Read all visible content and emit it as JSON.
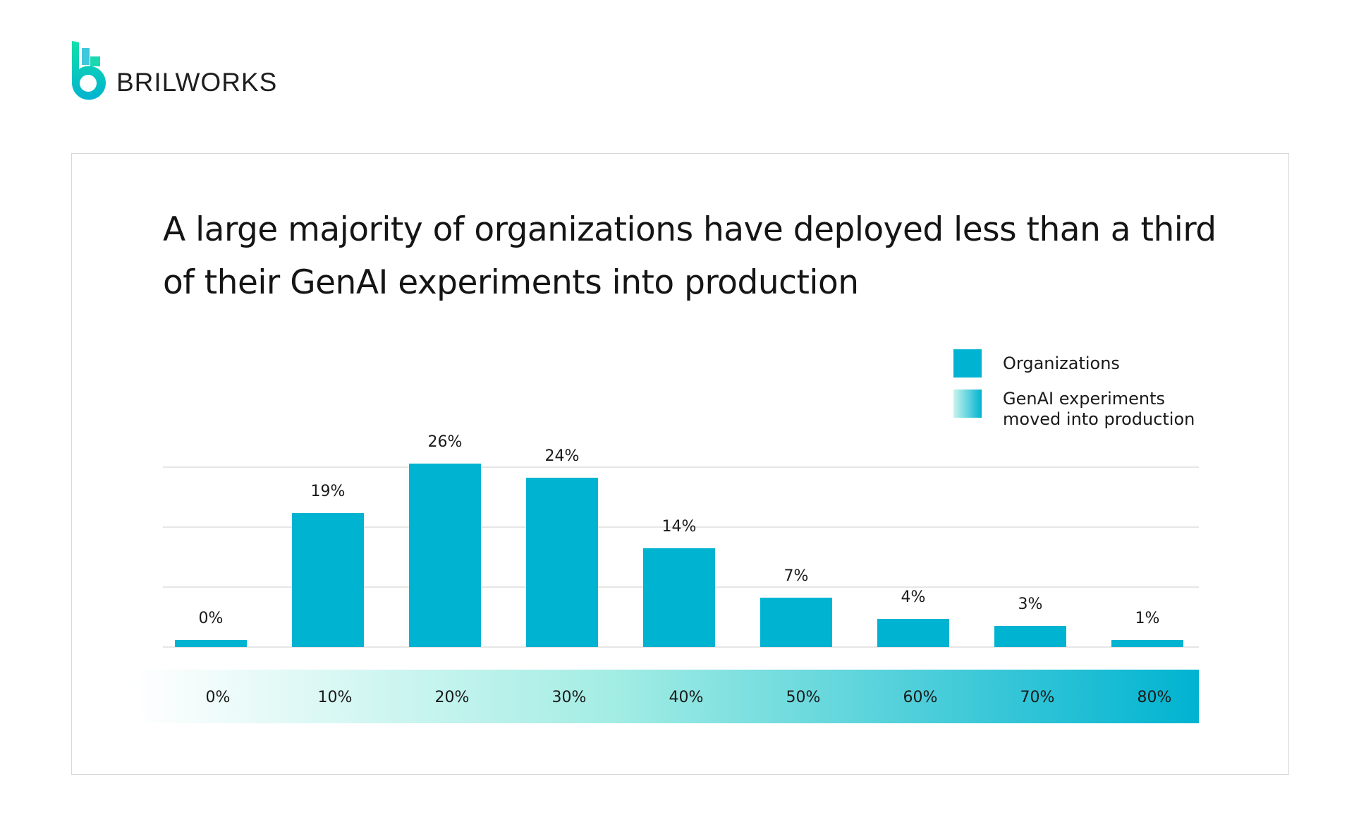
{
  "brand": {
    "name": "BRILWORKS"
  },
  "colors": {
    "bar": "#00b3d1",
    "gradient_start": "#ffffff",
    "gradient_mid": "#a3ede4",
    "gradient_end": "#00b3d1",
    "grid": "#e6e6e6"
  },
  "chart_data": {
    "type": "bar",
    "title": "A large majority of organizations have deployed less than a third of their GenAI experiments into production",
    "categories": [
      "0%",
      "10%",
      "20%",
      "30%",
      "40%",
      "50%",
      "60%",
      "70%",
      "80%"
    ],
    "series": [
      {
        "name": "Organizations",
        "values": [
          0,
          19,
          26,
          24,
          14,
          7,
          4,
          3,
          1
        ],
        "labels": [
          "0%",
          "19%",
          "26%",
          "24%",
          "14%",
          "7%",
          "4%",
          "3%",
          "1%"
        ]
      }
    ],
    "legend": [
      {
        "label": "Organizations"
      },
      {
        "label": "GenAI experiments moved into production"
      }
    ],
    "legend_placement": "top-right",
    "xlabel": "",
    "ylabel": "",
    "ylim": [
      0,
      26
    ],
    "grid": true
  }
}
